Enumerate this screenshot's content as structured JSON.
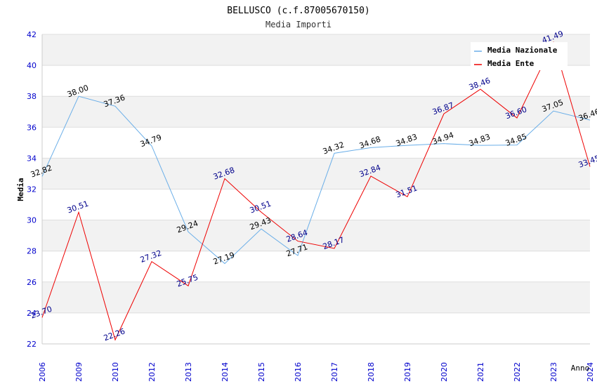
{
  "chart_data": {
    "type": "line",
    "title": "BELLUSCO (c.f.87005670150)",
    "subtitle": "Media Importi",
    "xlabel": "Anno",
    "ylabel": "Media",
    "ylim": [
      22,
      42
    ],
    "yticks": [
      "22",
      "24",
      "26",
      "28",
      "30",
      "32",
      "34",
      "36",
      "38",
      "40",
      "42"
    ],
    "grid": true,
    "legend_position": "top-right",
    "categories": [
      "2006",
      "2009",
      "2010",
      "2012",
      "2013",
      "2014",
      "2015",
      "2016",
      "2017",
      "2018",
      "2019",
      "2020",
      "2021",
      "2022",
      "2023",
      "2024"
    ],
    "series": [
      {
        "name": "Media Nazionale",
        "color": "#6aaee8",
        "label_color": "#000000",
        "values": [
          32.82,
          38.0,
          37.36,
          34.79,
          29.24,
          27.19,
          29.43,
          27.71,
          34.32,
          34.68,
          34.83,
          34.94,
          34.83,
          34.85,
          37.05,
          36.46
        ],
        "labels": [
          "32.82",
          "38.00",
          "37.36",
          "34.79",
          "29.24",
          "27.19",
          "29.43",
          "27.71",
          "34.32",
          "34.68",
          "34.83",
          "34.94",
          "34.83",
          "34.85",
          "37.05",
          "36.46"
        ]
      },
      {
        "name": "Media Ente",
        "color": "#ee0000",
        "label_color": "#00008b",
        "values": [
          23.7,
          30.51,
          22.26,
          27.32,
          25.75,
          32.68,
          30.51,
          28.64,
          28.17,
          32.84,
          31.51,
          36.87,
          38.46,
          36.6,
          41.49,
          33.45
        ],
        "labels": [
          "23.70",
          "30.51",
          "22.26",
          "27.32",
          "25.75",
          "32.68",
          "30.51",
          "28.64",
          "28.17",
          "32.84",
          "31.51",
          "36.87",
          "38.46",
          "36.60",
          "41.49",
          "33.45"
        ]
      }
    ]
  }
}
